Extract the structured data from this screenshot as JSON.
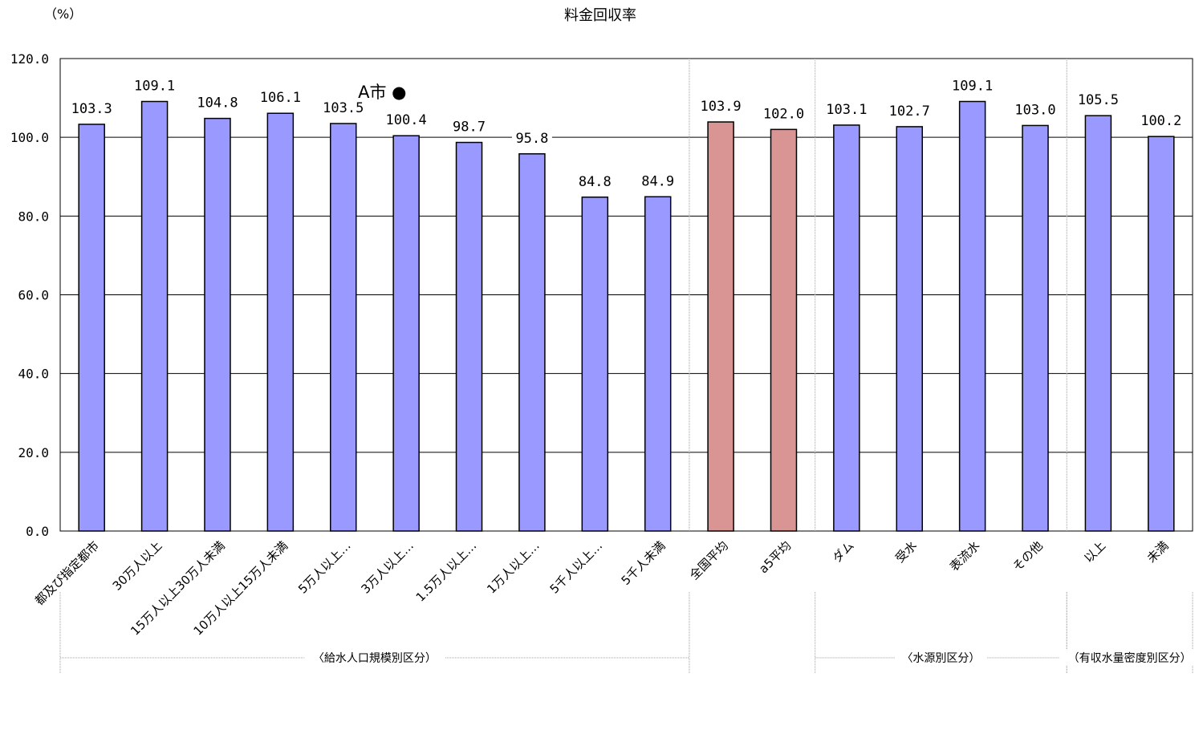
{
  "chart_data": {
    "type": "bar",
    "title": "料金回収率",
    "unit_label": "（%）",
    "ylim": [
      0,
      120
    ],
    "yticks": [
      "0.0",
      "20.0",
      "40.0",
      "60.0",
      "80.0",
      "100.0",
      "120.0"
    ],
    "grid": true,
    "categories": [
      "都及び指定都市",
      "30万人以上",
      "15万人以上30万人未満",
      "10万人以上15万人未満",
      "5万人以上…",
      "3万人以上…",
      "1.5万人以上…",
      "1万人以上…",
      "5千人以上…",
      "5千人未満",
      "全国平均",
      "a5平均",
      "ダム",
      "受水",
      "表流水",
      "その他",
      "以上",
      "未満"
    ],
    "values": [
      103.3,
      109.1,
      104.8,
      106.1,
      103.5,
      100.4,
      98.7,
      95.8,
      84.8,
      84.9,
      103.9,
      102.0,
      103.1,
      102.7,
      109.1,
      103.0,
      105.5,
      100.2
    ],
    "value_labels": [
      "103.3",
      "109.1",
      "104.8",
      "106.1",
      "103.5",
      "100.4",
      "98.7",
      "95.8",
      "84.8",
      "84.9",
      "103.9",
      "102.0",
      "103.1",
      "102.7",
      "109.1",
      "103.0",
      "105.5",
      "100.2"
    ],
    "bar_kinds": [
      "group",
      "group",
      "group",
      "group",
      "group",
      "group",
      "group",
      "group",
      "group",
      "group",
      "average",
      "average",
      "group",
      "group",
      "group",
      "group",
      "group",
      "group"
    ],
    "annotation": {
      "text": "A市 ●",
      "category_index": 5
    },
    "group_labels": [
      "〈給水人口規模別区分）",
      "〈水源別区分）",
      "（有収水量密度別区分）"
    ],
    "colors": {
      "group_bar": "#9999ff",
      "average_bar": "#d99594",
      "bar_edge": "#000000",
      "grid": "#000000",
      "separator": "#a0a0a0"
    }
  }
}
